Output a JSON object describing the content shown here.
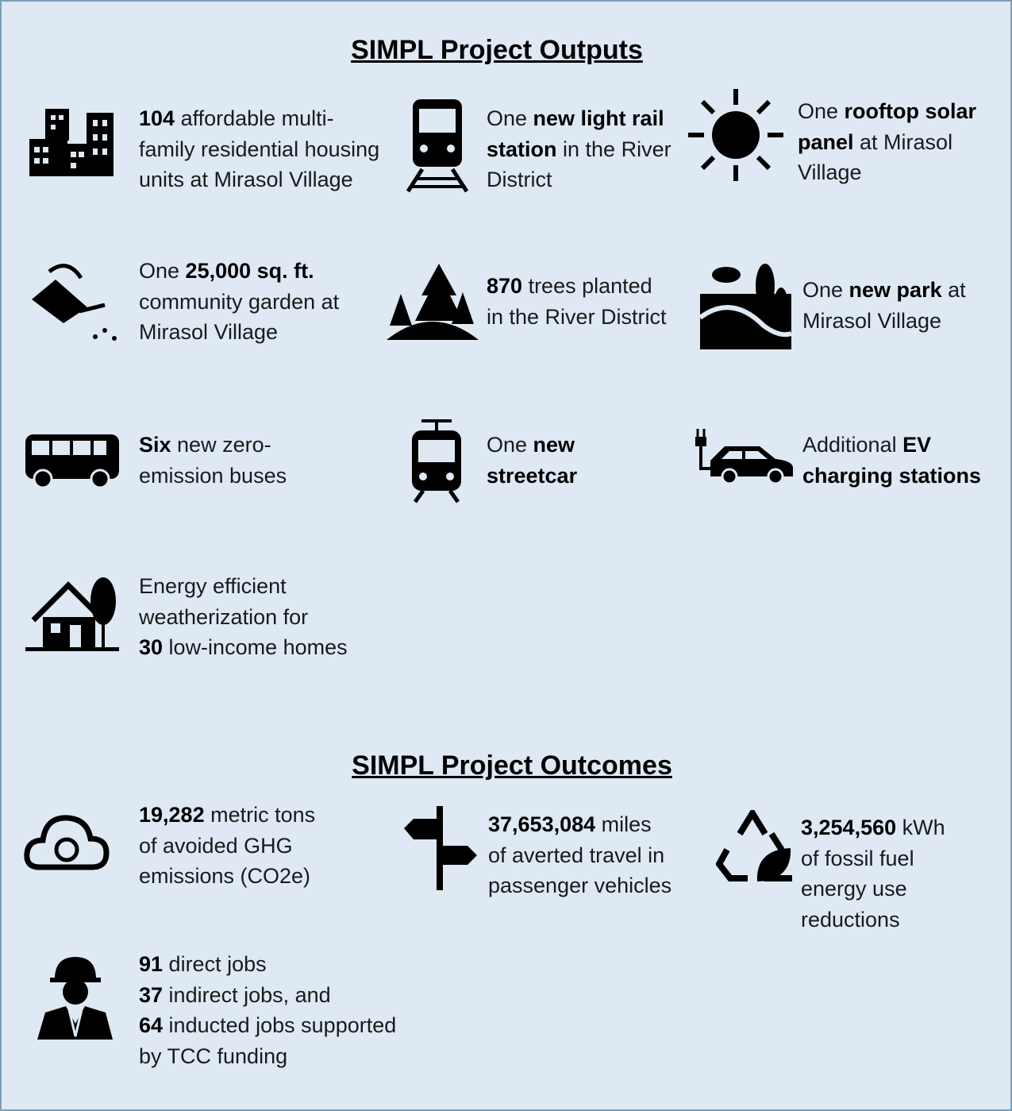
{
  "outputs": {
    "title": "SIMPL Project Outputs",
    "items": [
      {
        "lines": [
          [
            {
              "text": "104",
              "bold": true
            },
            {
              "text": " affordable multi-"
            }
          ],
          [
            {
              "text": "family residential housing"
            }
          ],
          [
            {
              "text": "units at Mirasol Village"
            }
          ]
        ]
      },
      {
        "lines": [
          [
            {
              "text": "One "
            },
            {
              "text": "new light rail",
              "bold": true
            }
          ],
          [
            {
              "text": "station",
              "bold": true
            },
            {
              "text": " in the River"
            }
          ],
          [
            {
              "text": "District"
            }
          ]
        ]
      },
      {
        "lines": [
          [
            {
              "text": "One "
            },
            {
              "text": "rooftop solar",
              "bold": true
            }
          ],
          [
            {
              "text": "panel",
              "bold": true
            },
            {
              "text": " at Mirasol"
            }
          ],
          [
            {
              "text": "Village"
            }
          ]
        ]
      },
      {
        "lines": [
          [
            {
              "text": "One "
            },
            {
              "text": "25,000 sq. ft.",
              "bold": true
            }
          ],
          [
            {
              "text": "community garden at"
            }
          ],
          [
            {
              "text": "Mirasol Village"
            }
          ]
        ]
      },
      {
        "lines": [
          [
            {
              "text": "870",
              "bold": true
            },
            {
              "text": " trees planted"
            }
          ],
          [
            {
              "text": "in the River District"
            }
          ]
        ]
      },
      {
        "lines": [
          [
            {
              "text": "One "
            },
            {
              "text": "new park",
              "bold": true
            },
            {
              "text": " at"
            }
          ],
          [
            {
              "text": "Mirasol Village"
            }
          ]
        ]
      },
      {
        "lines": [
          [
            {
              "text": "Six",
              "bold": true
            },
            {
              "text": " new zero-"
            }
          ],
          [
            {
              "text": "emission buses"
            }
          ]
        ]
      },
      {
        "lines": [
          [
            {
              "text": "One "
            },
            {
              "text": "new",
              "bold": true
            }
          ],
          [
            {
              "text": "streetcar",
              "bold": true
            }
          ]
        ]
      },
      {
        "lines": [
          [
            {
              "text": "Additional "
            },
            {
              "text": "EV",
              "bold": true
            }
          ],
          [
            {
              "text": "charging stations",
              "bold": true
            }
          ]
        ]
      },
      {
        "lines": [
          [
            {
              "text": "Energy efficient"
            }
          ],
          [
            {
              "text": "weatherization for"
            }
          ],
          [
            {
              "text": "30",
              "bold": true
            },
            {
              "text": " low-income homes"
            }
          ]
        ]
      }
    ]
  },
  "outcomes": {
    "title": "SIMPL Project Outcomes",
    "items": [
      {
        "lines": [
          [
            {
              "text": "19,282",
              "bold": true
            },
            {
              "text": " metric tons"
            }
          ],
          [
            {
              "text": "of avoided GHG"
            }
          ],
          [
            {
              "text": "emissions (CO2e)"
            }
          ]
        ]
      },
      {
        "lines": [
          [
            {
              "text": "37,653,084",
              "bold": true
            },
            {
              "text": " miles"
            }
          ],
          [
            {
              "text": "of averted travel in"
            }
          ],
          [
            {
              "text": "passenger vehicles"
            }
          ]
        ]
      },
      {
        "lines": [
          [
            {
              "text": "3,254,560",
              "bold": true
            },
            {
              "text": " kWh"
            }
          ],
          [
            {
              "text": "of fossil fuel"
            }
          ],
          [
            {
              "text": "energy use"
            }
          ],
          [
            {
              "text": "reductions"
            }
          ]
        ]
      },
      {
        "lines": [
          [
            {
              "text": "91",
              "bold": true
            },
            {
              "text": " direct jobs"
            }
          ],
          [
            {
              "text": "37",
              "bold": true
            },
            {
              "text": " indirect jobs, and"
            }
          ],
          [
            {
              "text": "64",
              "bold": true
            },
            {
              "text": " inducted jobs supported"
            }
          ],
          [
            {
              "text": "by TCC funding"
            }
          ]
        ]
      }
    ]
  }
}
